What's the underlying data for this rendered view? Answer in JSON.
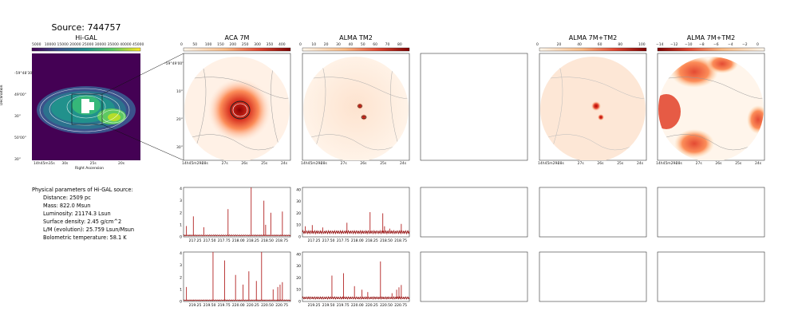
{
  "source_title": "Source: 744757",
  "panels": {
    "higal": {
      "title": "Hi-GAL",
      "xlabel": "Right Ascension",
      "ylabel": "Declination",
      "colorbar_ticks": [
        "5000",
        "10000",
        "15000",
        "20000",
        "25000",
        "30000",
        "35000",
        "40000",
        "45000"
      ],
      "x_ticks": [
        "14h45m35s",
        "30s",
        "25s",
        "20s"
      ],
      "y_ticks": [
        "-59°48'30\"",
        "49'00\"",
        "30\"",
        "50'00\"",
        "30\""
      ]
    },
    "aca": {
      "title": "ACA 7M",
      "colorbar_ticks": [
        "0",
        "50",
        "100",
        "150",
        "200",
        "250",
        "300",
        "350",
        "400"
      ],
      "x_ticks": [
        "14h45m29s",
        "28s",
        "27s",
        "26s",
        "25s",
        "24s"
      ],
      "y_ticks": [
        "-59°49'00\"",
        "10\"",
        "20\"",
        "30\""
      ]
    },
    "tm2": {
      "title": "ALMA TM2",
      "colorbar_ticks": [
        "0",
        "10",
        "20",
        "30",
        "40",
        "50",
        "60",
        "70",
        "80"
      ],
      "x_ticks": [
        "14h45m29s",
        "28s",
        "27s",
        "26s",
        "25s",
        "24s"
      ]
    },
    "combo": {
      "title": "ALMA 7M+TM2",
      "colorbar_ticks": [
        "0",
        "20",
        "40",
        "60",
        "80",
        "100"
      ],
      "x_ticks": [
        "14h45m29s",
        "28s",
        "27s",
        "26s",
        "25s",
        "24s"
      ]
    },
    "combo_neg": {
      "title": "ALMA 7M+TM2",
      "colorbar_ticks": [
        "−14",
        "−12",
        "−10",
        "−8",
        "−6",
        "−4",
        "−2",
        "0"
      ],
      "x_ticks": [
        "14h45m29s",
        "28s",
        "27s",
        "26s",
        "25s",
        "24s"
      ]
    }
  },
  "params": {
    "heading": "Physical parameters of Hi-GAL source:",
    "lines": [
      "Distance: 2509 pc",
      "Mass: 822.0 Msun",
      "Luminosity: 21174.3 Lsun",
      "Surface density: 2.45 g/cm^2",
      "L/M (evolution): 25.759 Lsun/Msun",
      "Bolometric temperature: 58.1 K"
    ]
  },
  "chart_data": [
    {
      "type": "line",
      "name": "ACA spectrum window 1",
      "x_ticks": [
        "217.25",
        "217.50",
        "217.75",
        "218.00",
        "218.25",
        "218.50",
        "218.75"
      ],
      "y_ticks": [
        "0",
        "1",
        "2",
        "3",
        "4"
      ],
      "xlim": [
        217.05,
        218.9
      ],
      "ylim": [
        0,
        4.1
      ],
      "baseline": 0.12,
      "peaks": [
        {
          "x": 217.1,
          "y": 0.9
        },
        {
          "x": 217.22,
          "y": 1.7
        },
        {
          "x": 217.4,
          "y": 0.8
        },
        {
          "x": 217.82,
          "y": 2.3
        },
        {
          "x": 218.22,
          "y": 4.2
        },
        {
          "x": 218.44,
          "y": 3.0
        },
        {
          "x": 218.47,
          "y": 1.0
        },
        {
          "x": 218.56,
          "y": 2.0
        },
        {
          "x": 218.76,
          "y": 2.1
        }
      ]
    },
    {
      "type": "line",
      "name": "TM2 spectrum window 1",
      "x_ticks": [
        "217.25",
        "217.50",
        "217.75",
        "218.00",
        "218.25",
        "218.50",
        "218.75"
      ],
      "y_ticks": [
        "0",
        "10",
        "20",
        "30",
        "40"
      ],
      "xlim": [
        217.05,
        218.9
      ],
      "ylim": [
        0,
        42
      ],
      "baseline": 4,
      "peaks": [
        {
          "x": 217.1,
          "y": 9
        },
        {
          "x": 217.22,
          "y": 10
        },
        {
          "x": 217.4,
          "y": 8
        },
        {
          "x": 217.82,
          "y": 12
        },
        {
          "x": 218.22,
          "y": 21
        },
        {
          "x": 218.44,
          "y": 20
        },
        {
          "x": 218.47,
          "y": 9
        },
        {
          "x": 218.56,
          "y": 7
        },
        {
          "x": 218.76,
          "y": 11
        }
      ]
    },
    {
      "type": "line",
      "name": "ACA spectrum window 2",
      "x_ticks": [
        "219.25",
        "219.50",
        "219.75",
        "220.00",
        "220.25",
        "220.50",
        "220.75"
      ],
      "y_ticks": [
        "0",
        "1",
        "2",
        "3",
        "4"
      ],
      "xlim": [
        219.05,
        220.9
      ],
      "ylim": [
        0,
        4.1
      ],
      "baseline": 0.1,
      "peaks": [
        {
          "x": 219.1,
          "y": 1.2
        },
        {
          "x": 219.56,
          "y": 4.2
        },
        {
          "x": 219.76,
          "y": 3.4
        },
        {
          "x": 219.95,
          "y": 2.2
        },
        {
          "x": 220.08,
          "y": 1.4
        },
        {
          "x": 220.18,
          "y": 2.5
        },
        {
          "x": 220.31,
          "y": 1.7
        },
        {
          "x": 220.4,
          "y": 4.2
        },
        {
          "x": 220.6,
          "y": 1.0
        },
        {
          "x": 220.68,
          "y": 1.2
        },
        {
          "x": 220.72,
          "y": 1.4
        },
        {
          "x": 220.76,
          "y": 1.6
        }
      ]
    },
    {
      "type": "line",
      "name": "TM2 spectrum window 2",
      "x_ticks": [
        "219.25",
        "219.50",
        "219.75",
        "220.00",
        "220.25",
        "220.50",
        "220.75"
      ],
      "y_ticks": [
        "0",
        "10",
        "20",
        "30",
        "40"
      ],
      "xlim": [
        219.05,
        220.9
      ],
      "ylim": [
        0,
        42
      ],
      "baseline": 3,
      "peaks": [
        {
          "x": 219.56,
          "y": 22
        },
        {
          "x": 219.76,
          "y": 24
        },
        {
          "x": 219.95,
          "y": 13
        },
        {
          "x": 220.08,
          "y": 10
        },
        {
          "x": 220.18,
          "y": 8
        },
        {
          "x": 220.4,
          "y": 34
        },
        {
          "x": 220.6,
          "y": 7
        },
        {
          "x": 220.68,
          "y": 10
        },
        {
          "x": 220.72,
          "y": 12
        },
        {
          "x": 220.76,
          "y": 14
        }
      ]
    }
  ]
}
